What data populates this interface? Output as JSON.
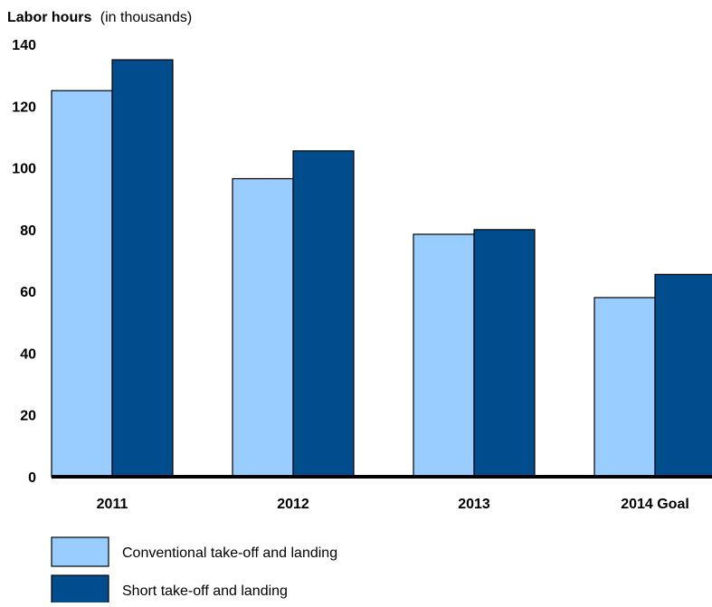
{
  "chart_data": {
    "type": "bar",
    "ylabel": "Labor hours",
    "ylabel_unit": "(in thousands)",
    "categories": [
      "2011",
      "2012",
      "2013",
      "2014 Goal"
    ],
    "series": [
      {
        "name": "Conventional take-off and landing",
        "color": "#99ccff",
        "values": [
          125,
          96.5,
          78.5,
          58
        ]
      },
      {
        "name": "Short take-off and landing",
        "color": "#004c8c",
        "values": [
          135,
          105.5,
          80,
          65.5
        ]
      }
    ],
    "ylim": [
      0,
      140
    ],
    "yticks": [
      0,
      20,
      40,
      60,
      80,
      100,
      120,
      140
    ],
    "grid": false,
    "legend_position": "bottom-left"
  }
}
